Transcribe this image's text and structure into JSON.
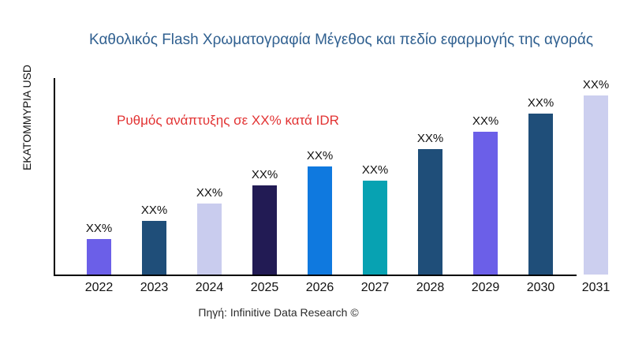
{
  "chart_data": {
    "type": "bar",
    "title": "Καθολικός Flash Χρωματογραφία Μέγεθος και πεδίο εφαρμογής της αγοράς",
    "ylabel": "ΕΚΑΤΟΜΜΥΡΙΑ USD",
    "xlabel": "",
    "annotation": "Ρυθμός ανάπτυξης σε XX% κατά IDR",
    "source": "Πηγή: Infinitive Data Research ©",
    "categories": [
      "2022",
      "2023",
      "2024",
      "2025",
      "2026",
      "2027",
      "2028",
      "2029",
      "2030",
      "2031"
    ],
    "values": [
      45,
      68,
      90,
      113,
      137,
      119,
      159,
      181,
      204,
      227
    ],
    "values_note": "estimated relative heights read from pixels; printed data labels are placeholders",
    "bar_labels": [
      "XX%",
      "XX%",
      "XX%",
      "XX%",
      "XX%",
      "XX%",
      "XX%",
      "XX%",
      "XX%",
      "XX%"
    ],
    "bar_colors": [
      "#6B5FE8",
      "#1F4E79",
      "#C9CCEE",
      "#221B54",
      "#0F79DF",
      "#07A2B2",
      "#1F4E79",
      "#6B5FE8",
      "#1F4E79",
      "#CCCFEF"
    ],
    "ylim": [
      0,
      250
    ],
    "grid": false,
    "legend": "none",
    "colors": {
      "title": "#306090",
      "annotation": "#E23333",
      "axis": "#000000",
      "tick_text": "#111111",
      "source_text": "#2b2b2b",
      "background": "#ffffff"
    }
  }
}
